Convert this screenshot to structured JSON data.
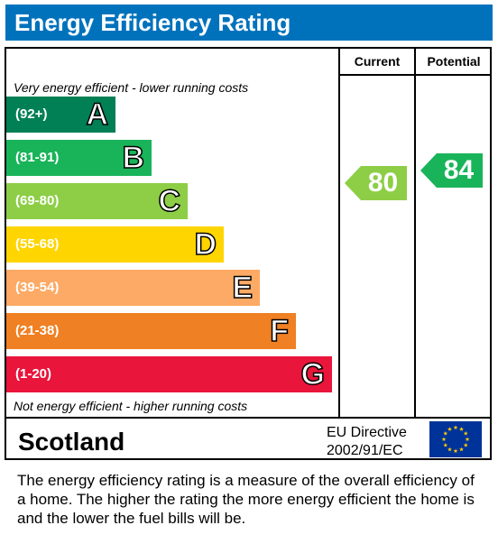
{
  "header": {
    "title": "Energy Efficiency Rating"
  },
  "columns": {
    "current": "Current",
    "potential": "Potential"
  },
  "captions": {
    "top": "Very energy efficient - lower running costs",
    "bottom": "Not energy efficient - higher running costs"
  },
  "chart_data": {
    "type": "bar",
    "title": "Energy Efficiency Rating",
    "bands": [
      {
        "range": "(92+)",
        "letter": "A",
        "color": "#008054"
      },
      {
        "range": "(81-91)",
        "letter": "B",
        "color": "#19b459"
      },
      {
        "range": "(69-80)",
        "letter": "C",
        "color": "#8dce46"
      },
      {
        "range": "(55-68)",
        "letter": "D",
        "color": "#ffd500"
      },
      {
        "range": "(39-54)",
        "letter": "E",
        "color": "#fcaa65"
      },
      {
        "range": "(21-38)",
        "letter": "F",
        "color": "#ef8023"
      },
      {
        "range": "(1-20)",
        "letter": "G",
        "color": "#e9153b"
      }
    ],
    "ratings": {
      "current": {
        "value": 80,
        "band": "C",
        "color": "#8dce46"
      },
      "potential": {
        "value": 84,
        "band": "B",
        "color": "#19b459"
      }
    }
  },
  "footer": {
    "region": "Scotland",
    "directive_line1": "EU Directive",
    "directive_line2": "2002/91/EC"
  },
  "description": "The energy efficiency rating is a measure of the overall efficiency of a home.  The higher the rating the more energy efficient the home is and the lower the fuel bills will be.",
  "colors": {
    "header_bg": "#0072bc",
    "eu_flag_bg": "#003399",
    "eu_flag_stars": "#ffcc00"
  }
}
